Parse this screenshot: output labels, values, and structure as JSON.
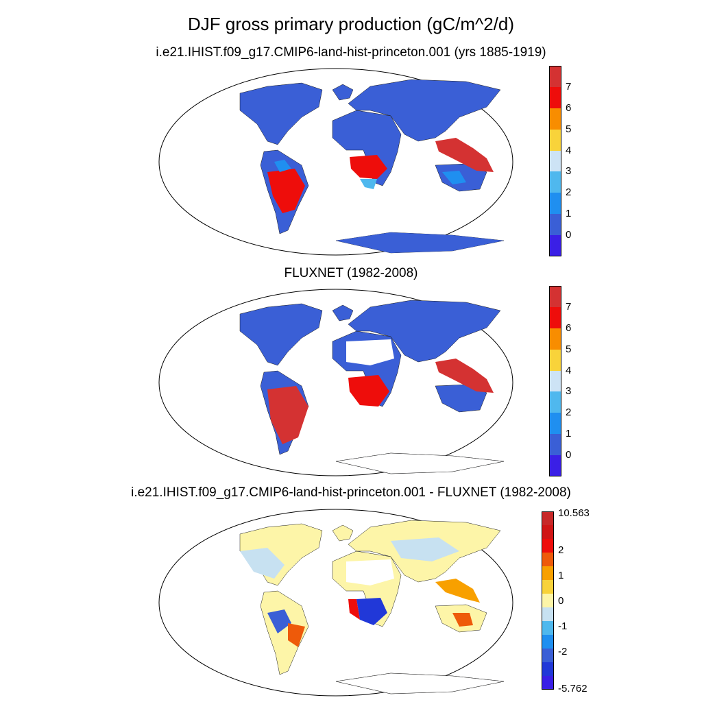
{
  "figure": {
    "title": "DJF gross primary production (gC/m^2/d)"
  },
  "panels": [
    {
      "title": "i.e21.IHIST.f09_g17.CMIP6-land-hist-princeton.001 (yrs 1885-1919)",
      "colorbar": {
        "colors": [
          "#3a1fe6",
          "#3a5fd6",
          "#1f8ff0",
          "#4fb8ee",
          "#cde3f5",
          "#f9d33a",
          "#f88d00",
          "#ee0d0b",
          "#d43232"
        ],
        "labels": [
          "0",
          "1",
          "2",
          "3",
          "4",
          "5",
          "6",
          "7"
        ]
      }
    },
    {
      "title": "FLUXNET (1982-2008)",
      "colorbar": {
        "colors": [
          "#3a1fe6",
          "#3a5fd6",
          "#1f8ff0",
          "#4fb8ee",
          "#cde3f5",
          "#f9d33a",
          "#f88d00",
          "#ee0d0b",
          "#d43232"
        ],
        "labels": [
          "0",
          "1",
          "2",
          "3",
          "4",
          "5",
          "6",
          "7"
        ]
      }
    },
    {
      "title": "i.e21.IHIST.f09_g17.CMIP6-land-hist-princeton.001 - FLUXNET (1982-2008)",
      "colorbar": {
        "colors": [
          "#3a1fe6",
          "#2138d8",
          "#3a5fd6",
          "#1f8ff0",
          "#4fb8ee",
          "#c7e1f1",
          "#fdf5a8",
          "#f8d23a",
          "#f8a000",
          "#ee5a0a",
          "#ee0d0b",
          "#d01515",
          "#c82828"
        ],
        "labels": [
          "10.563",
          "2",
          "1",
          "0",
          "-1",
          "-2",
          "-5.762"
        ]
      }
    }
  ]
}
